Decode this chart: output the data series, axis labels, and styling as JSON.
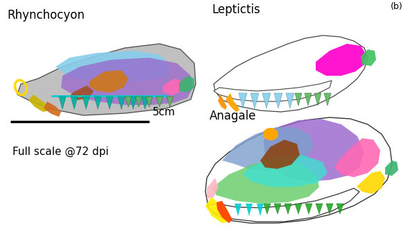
{
  "background_color": "#ffffff",
  "labels": {
    "rhynchocyon": "Rhynchocyon",
    "leptictis": "Leptictis",
    "anagale": "Anagale",
    "scale_bar": "5cm",
    "full_scale": "Full scale @72 dpi",
    "panel_label": "(b)"
  },
  "figsize": [
    5.88,
    3.31
  ],
  "dpi": 100,
  "font_sizes": {
    "label": 12,
    "scale": 11,
    "panel": 9,
    "full_scale": 11
  }
}
